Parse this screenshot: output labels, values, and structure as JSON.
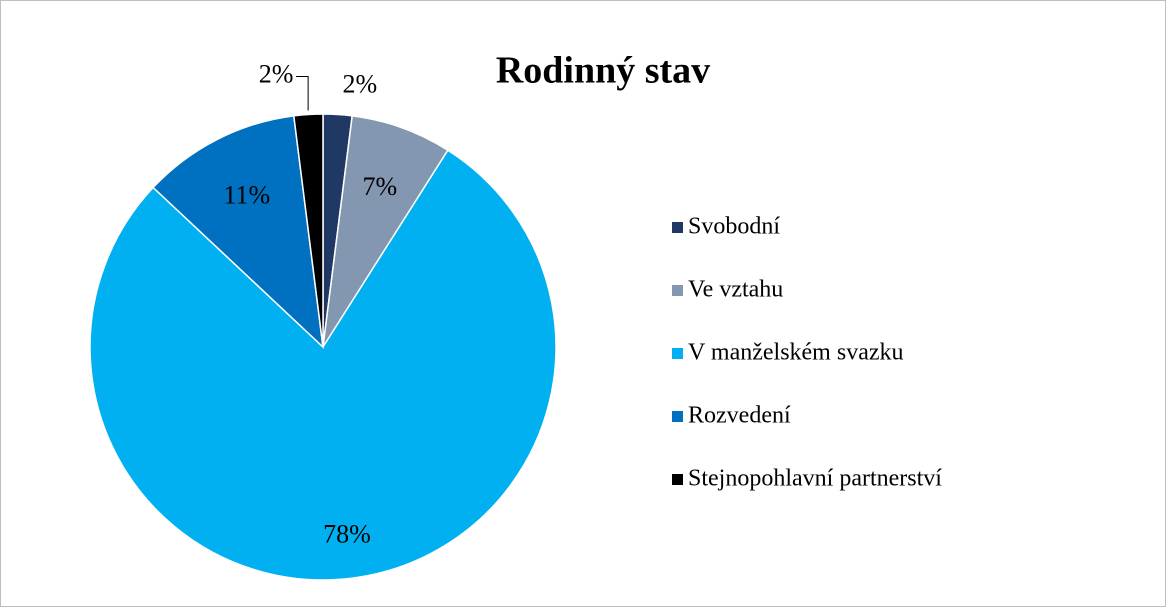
{
  "chart_data": {
    "type": "pie",
    "title": "Rodinný stav",
    "categories": [
      "Svobodní",
      "Ve vztahu",
      "V manželském svazku",
      "Rozvedení",
      "Stejnopohlavní partnerství"
    ],
    "values": [
      2,
      7,
      78,
      11,
      2
    ],
    "value_labels": [
      "2%",
      "7%",
      "78%",
      "11%",
      "2%"
    ],
    "colors": [
      "#203864",
      "#8497b0",
      "#00b0f0",
      "#0070c0",
      "#000000"
    ],
    "legend": "right"
  }
}
